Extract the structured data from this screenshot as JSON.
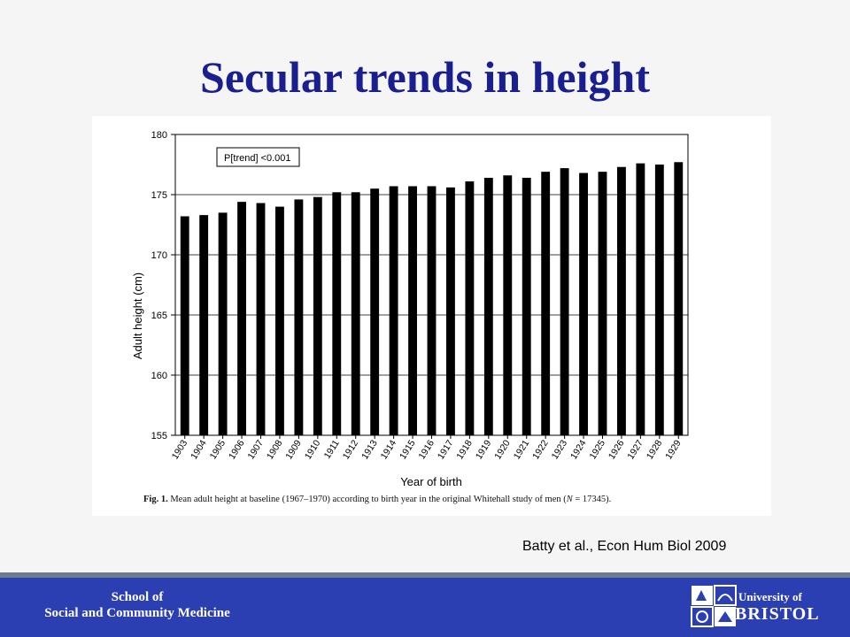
{
  "slide": {
    "title": "Secular trends in height",
    "citation": "Batty et al., Econ Hum Biol 2009"
  },
  "figure": {
    "caption_prefix": "Fig. 1.",
    "caption_text": " Mean adult height at baseline (1967–1970) according to birth year in the original Whitehall study of men (",
    "caption_n": "N",
    "caption_suffix": " = 17345)."
  },
  "chart_data": {
    "type": "bar",
    "title": "",
    "xlabel": "Year of birth",
    "ylabel": "Adult height (cm)",
    "ylim": [
      155,
      180
    ],
    "yticks": [
      155,
      160,
      165,
      170,
      175,
      180
    ],
    "annotation": "P[trend] <0.001",
    "grid": "horizontal",
    "bar_color": "#000000",
    "categories": [
      "1903",
      "1904",
      "1905",
      "1906",
      "1907",
      "1908",
      "1909",
      "1910",
      "1911",
      "1912",
      "1913",
      "1914",
      "1915",
      "1916",
      "1917",
      "1918",
      "1919",
      "1920",
      "1921",
      "1922",
      "1923",
      "1924",
      "1925",
      "1926",
      "1927",
      "1928",
      "1929"
    ],
    "values": [
      173.2,
      173.3,
      173.5,
      174.4,
      174.3,
      174.0,
      174.6,
      174.8,
      175.2,
      175.2,
      175.5,
      175.7,
      175.7,
      175.7,
      175.6,
      176.1,
      176.4,
      176.6,
      176.4,
      176.9,
      177.2,
      176.8,
      176.9,
      177.3,
      177.6,
      177.5,
      177.7
    ]
  },
  "footer": {
    "school_line1": "School of",
    "school_line2": "Social and Community Medicine",
    "university_of": "University of",
    "university_name": "BRISTOL",
    "bar_color": "#2b3fb3"
  }
}
